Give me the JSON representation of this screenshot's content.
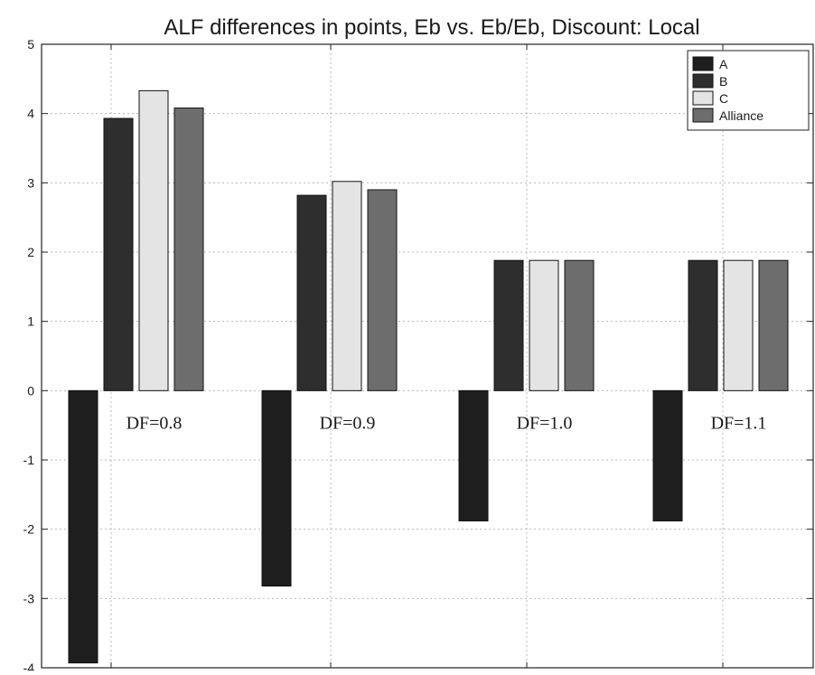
{
  "chart_data": {
    "type": "bar",
    "title": "ALF differences in points, Eb vs. Eb/Eb, Discount: Local",
    "xlabel": "",
    "ylabel": "",
    "ylim": [
      -4,
      5
    ],
    "yticks": [
      5,
      4,
      3,
      2,
      1,
      0,
      -1,
      -2,
      -3,
      -4
    ],
    "grid": true,
    "legend_position": "top-right",
    "categories": [
      "DF=0.8",
      "DF=0.9",
      "DF=1.0",
      "DF=1.1"
    ],
    "series": [
      {
        "name": "A",
        "color": "#1e1e1e",
        "values": [
          -3.93,
          -2.82,
          -1.88,
          -1.88
        ]
      },
      {
        "name": "B",
        "color": "#2e2e2e",
        "values": [
          3.93,
          2.82,
          1.88,
          1.88
        ]
      },
      {
        "name": "C",
        "color": "#e4e4e4",
        "values": [
          4.33,
          3.02,
          1.88,
          1.88
        ]
      },
      {
        "name": "Alliance",
        "color": "#6d6d6d",
        "values": [
          4.08,
          2.9,
          1.88,
          1.88
        ]
      }
    ]
  }
}
